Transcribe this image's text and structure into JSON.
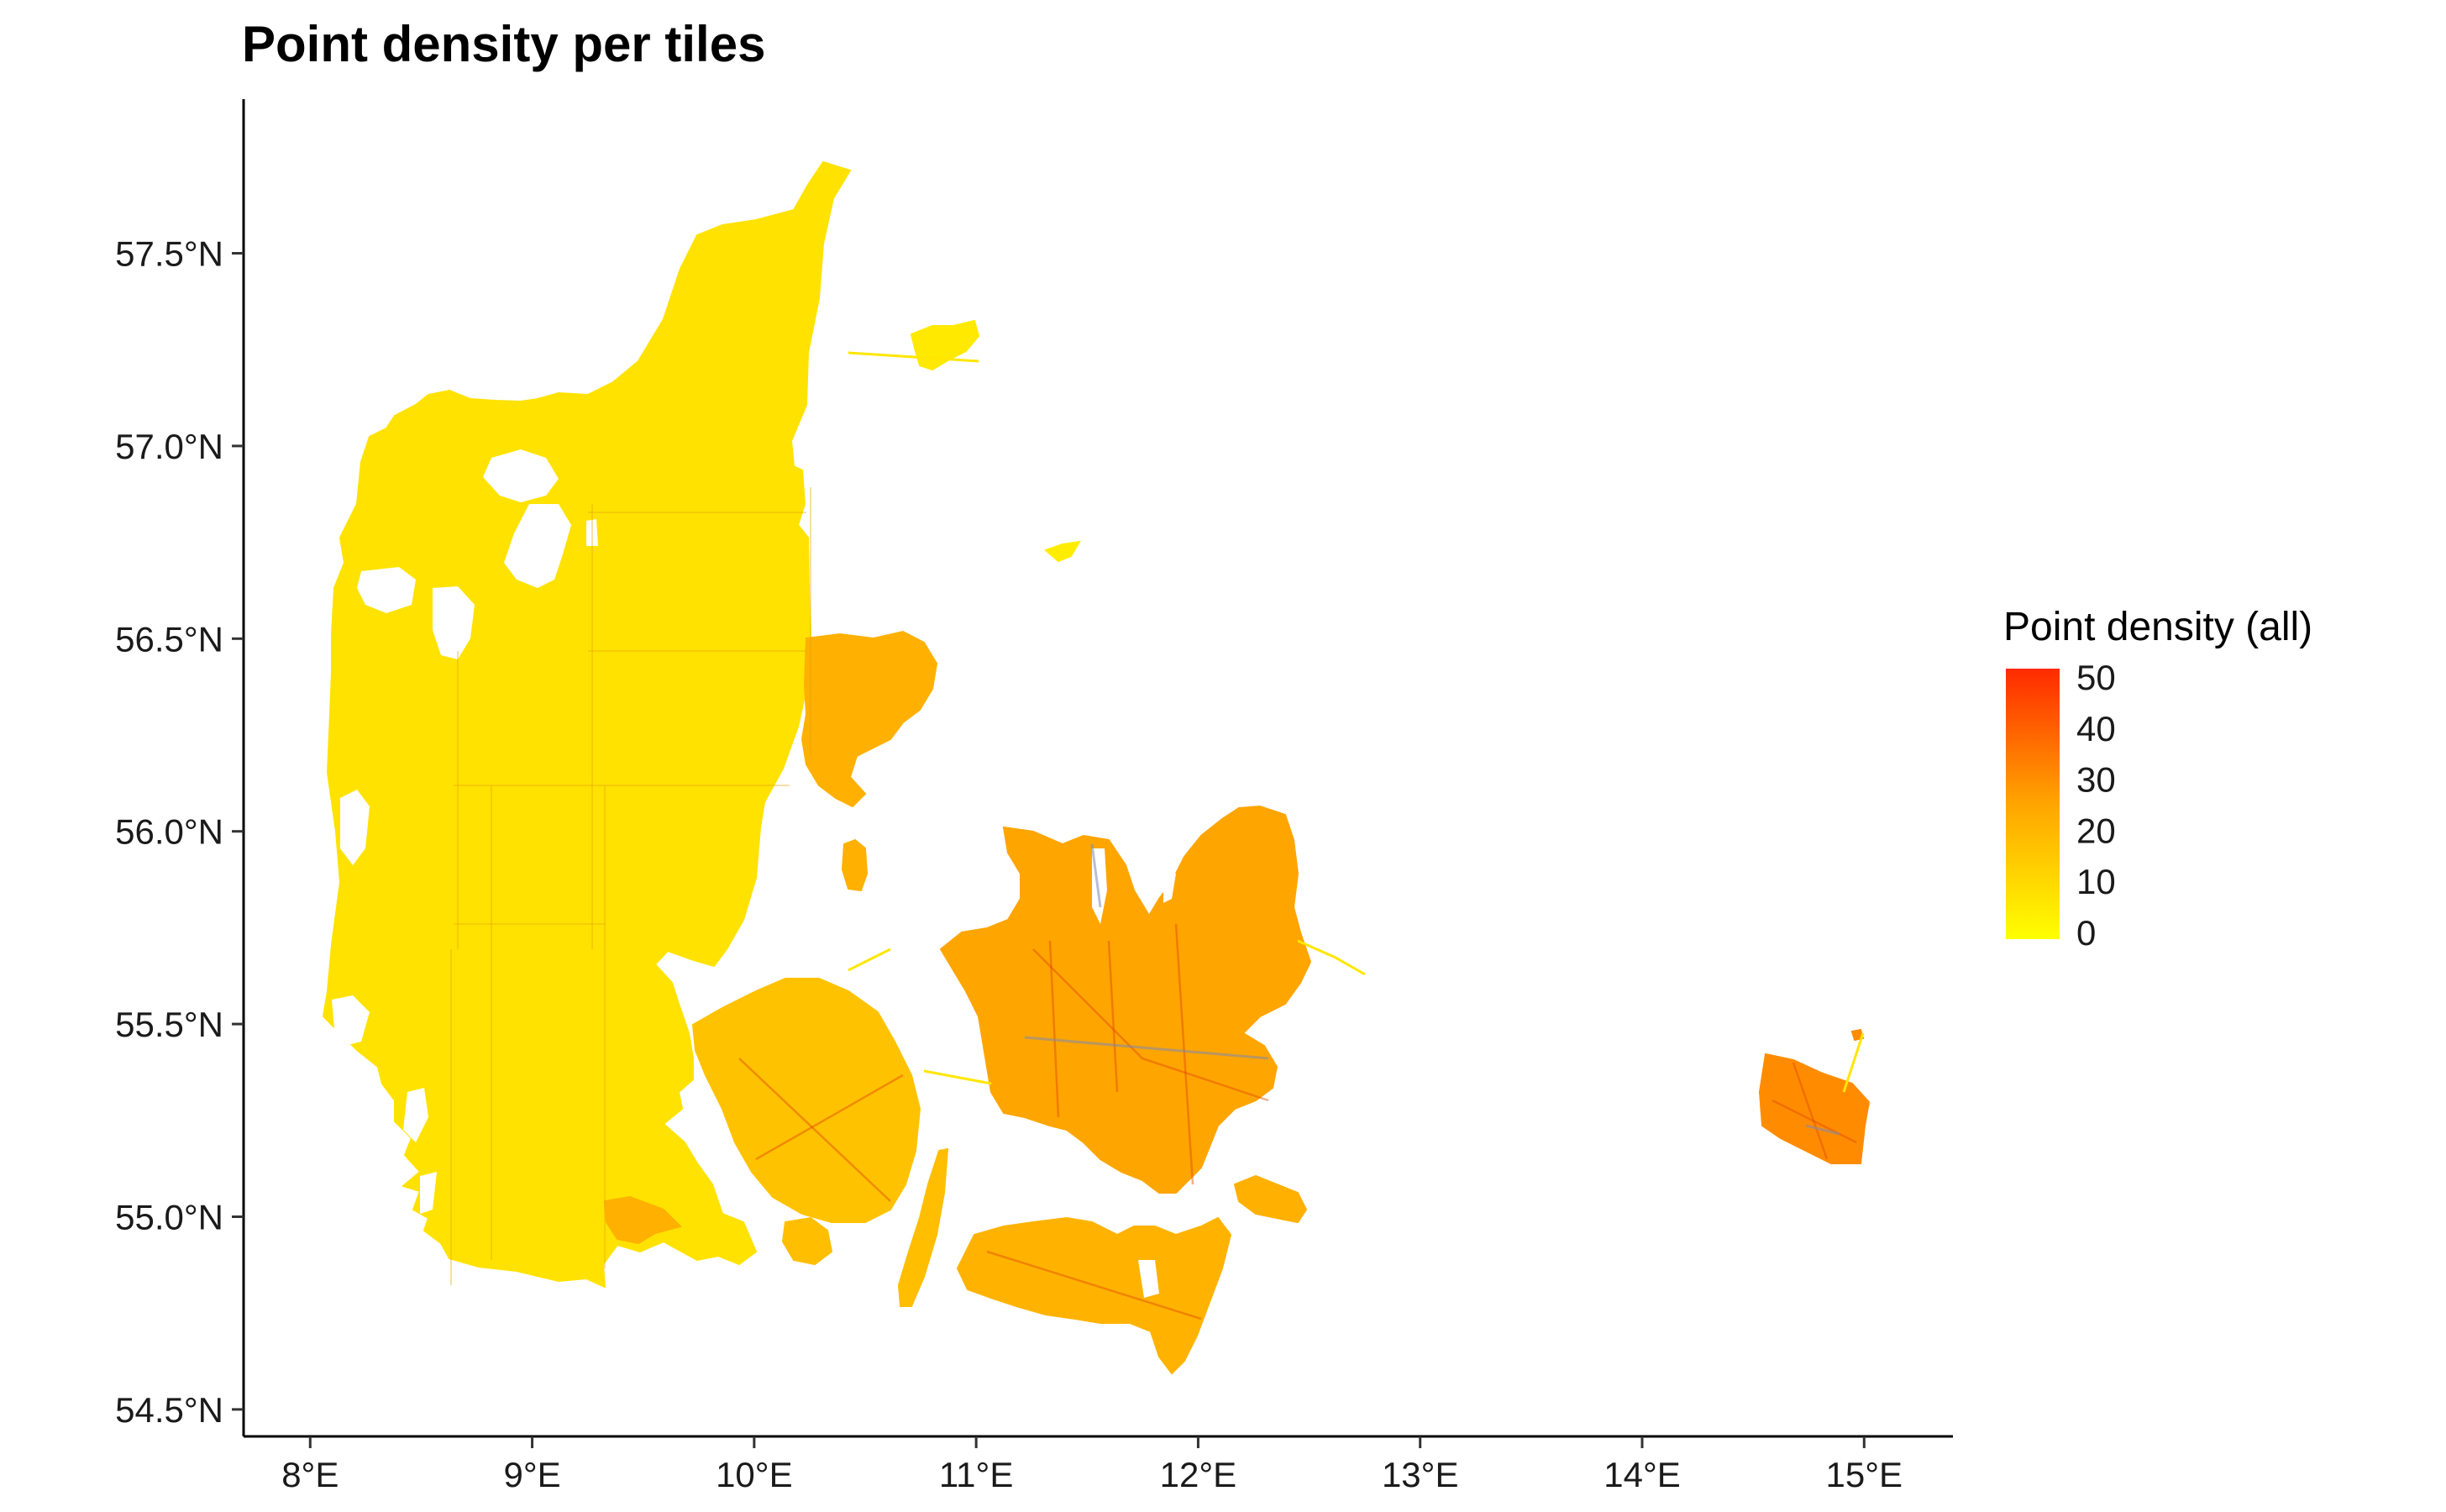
{
  "title": "Point density per tiles",
  "x_axis": {
    "range_lon": [
      7.7,
      15.4
    ],
    "ticks": [
      {
        "value": 8,
        "label": "8°E"
      },
      {
        "value": 9,
        "label": "9°E"
      },
      {
        "value": 10,
        "label": "10°E"
      },
      {
        "value": 11,
        "label": "11°E"
      },
      {
        "value": 12,
        "label": "12°E"
      },
      {
        "value": 13,
        "label": "13°E"
      },
      {
        "value": 14,
        "label": "14°E"
      },
      {
        "value": 15,
        "label": "15°E"
      }
    ]
  },
  "y_axis": {
    "range_lat": [
      54.43,
      57.9
    ],
    "ticks": [
      {
        "value": 54.5,
        "label": "54.5°N"
      },
      {
        "value": 55.0,
        "label": "55.0°N"
      },
      {
        "value": 55.5,
        "label": "55.5°N"
      },
      {
        "value": 56.0,
        "label": "56.0°N"
      },
      {
        "value": 56.5,
        "label": "56.5°N"
      },
      {
        "value": 57.0,
        "label": "57.0°N"
      },
      {
        "value": 57.5,
        "label": "57.5°N"
      }
    ]
  },
  "legend": {
    "title": "Point density (all)",
    "min": 0,
    "max": 50,
    "labels": [
      "50",
      "40",
      "30",
      "20",
      "10",
      "0"
    ],
    "color_low": "#ffff00",
    "color_mid": "#ffa500",
    "color_high": "#ff2a00"
  },
  "regions": [
    {
      "name": "jutland",
      "density": 8
    },
    {
      "name": "djursland",
      "density": 22
    },
    {
      "name": "laeso",
      "density": 6
    },
    {
      "name": "anholt",
      "density": 5
    },
    {
      "name": "funen",
      "density": 17
    },
    {
      "name": "als",
      "density": 22
    },
    {
      "name": "aero-langeland",
      "density": 18
    },
    {
      "name": "zealand",
      "density": 25
    },
    {
      "name": "lolland-falster",
      "density": 21
    },
    {
      "name": "mon",
      "density": 22
    },
    {
      "name": "bornholm",
      "density": 30
    }
  ]
}
